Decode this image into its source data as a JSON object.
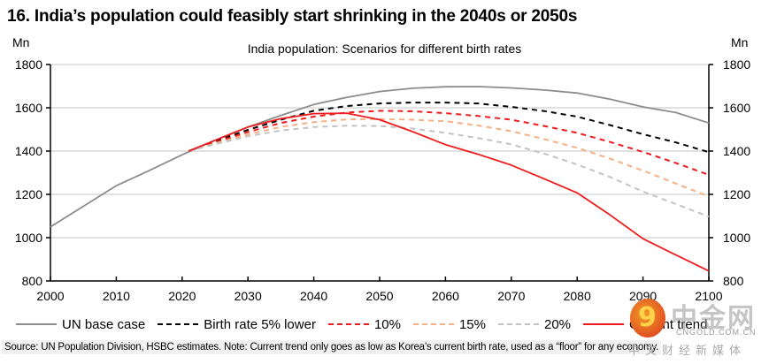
{
  "chart_data": {
    "type": "line",
    "title": "16. India’s population could feasibly start shrinking in the 2040s or 2050s",
    "subtitle": "India population: Scenarios for different birth rates",
    "ylabel_left": "Mn",
    "ylabel_right": "Mn",
    "xlabel": "",
    "xlim": [
      2000,
      2100
    ],
    "ylim": [
      800,
      1800
    ],
    "x_ticks": [
      2000,
      2010,
      2020,
      2030,
      2040,
      2050,
      2060,
      2070,
      2080,
      2090,
      2100
    ],
    "y_ticks": [
      800,
      1000,
      1200,
      1400,
      1600,
      1800
    ],
    "grid": "horizontal",
    "legend_position": "bottom",
    "series": [
      {
        "name": "UN base case",
        "color": "#8c8c8c",
        "style": "solid",
        "x": [
          2000,
          2005,
          2010,
          2015,
          2020,
          2025,
          2030,
          2035,
          2040,
          2045,
          2050,
          2055,
          2060,
          2065,
          2070,
          2075,
          2080,
          2085,
          2090,
          2095,
          2100
        ],
        "values": [
          1050,
          1145,
          1240,
          1310,
          1383,
          1450,
          1511,
          1565,
          1615,
          1648,
          1675,
          1690,
          1697,
          1698,
          1692,
          1682,
          1668,
          1640,
          1604,
          1578,
          1530
        ]
      },
      {
        "name": "Birth rate 5% lower",
        "color": "#000000",
        "style": "dashed",
        "x": [
          2021,
          2025,
          2030,
          2035,
          2040,
          2045,
          2050,
          2055,
          2060,
          2065,
          2070,
          2075,
          2080,
          2085,
          2090,
          2095,
          2100
        ],
        "values": [
          1400,
          1445,
          1498,
          1545,
          1586,
          1608,
          1620,
          1624,
          1624,
          1620,
          1604,
          1585,
          1559,
          1520,
          1478,
          1440,
          1395
        ]
      },
      {
        "name": "10%",
        "color": "#ee1c1c",
        "style": "dashed",
        "x": [
          2021,
          2025,
          2030,
          2035,
          2040,
          2045,
          2050,
          2055,
          2060,
          2065,
          2070,
          2075,
          2080,
          2085,
          2090,
          2095,
          2100
        ],
        "values": [
          1400,
          1440,
          1488,
          1530,
          1559,
          1578,
          1586,
          1584,
          1575,
          1562,
          1545,
          1516,
          1484,
          1442,
          1396,
          1345,
          1290
        ]
      },
      {
        "name": "15%",
        "color": "#f5b084",
        "style": "dashed",
        "x": [
          2021,
          2025,
          2030,
          2035,
          2040,
          2045,
          2050,
          2055,
          2060,
          2065,
          2070,
          2075,
          2080,
          2085,
          2090,
          2095,
          2100
        ],
        "values": [
          1400,
          1435,
          1477,
          1512,
          1534,
          1546,
          1548,
          1545,
          1538,
          1518,
          1492,
          1455,
          1415,
          1365,
          1310,
          1250,
          1190
        ]
      },
      {
        "name": "20%",
        "color": "#c3c3c3",
        "style": "dashed",
        "x": [
          2021,
          2025,
          2030,
          2035,
          2040,
          2045,
          2050,
          2055,
          2060,
          2065,
          2070,
          2075,
          2080,
          2085,
          2090,
          2095,
          2100
        ],
        "values": [
          1400,
          1432,
          1468,
          1495,
          1511,
          1517,
          1516,
          1504,
          1484,
          1460,
          1431,
          1388,
          1338,
          1280,
          1213,
          1155,
          1097
        ]
      },
      {
        "name": "Current trend",
        "color": "#ee1c1c",
        "style": "solid",
        "x": [
          2021,
          2025,
          2030,
          2035,
          2040,
          2045,
          2050,
          2055,
          2060,
          2065,
          2070,
          2075,
          2080,
          2085,
          2090,
          2095,
          2100
        ],
        "values": [
          1400,
          1450,
          1511,
          1550,
          1573,
          1575,
          1545,
          1490,
          1430,
          1385,
          1335,
          1272,
          1207,
          1105,
          995,
          920,
          846
        ]
      }
    ],
    "source": "Source: UN Population Division, HSBC estimates. Note: Current trend only goes as low as Korea’s current birth rate, used as a “floor” for any economy."
  },
  "watermark": {
    "logo_glyph": "9",
    "brand": "中金网",
    "domain": "CNGOLD.COM.CN",
    "tagline": "中文财经新媒体"
  }
}
